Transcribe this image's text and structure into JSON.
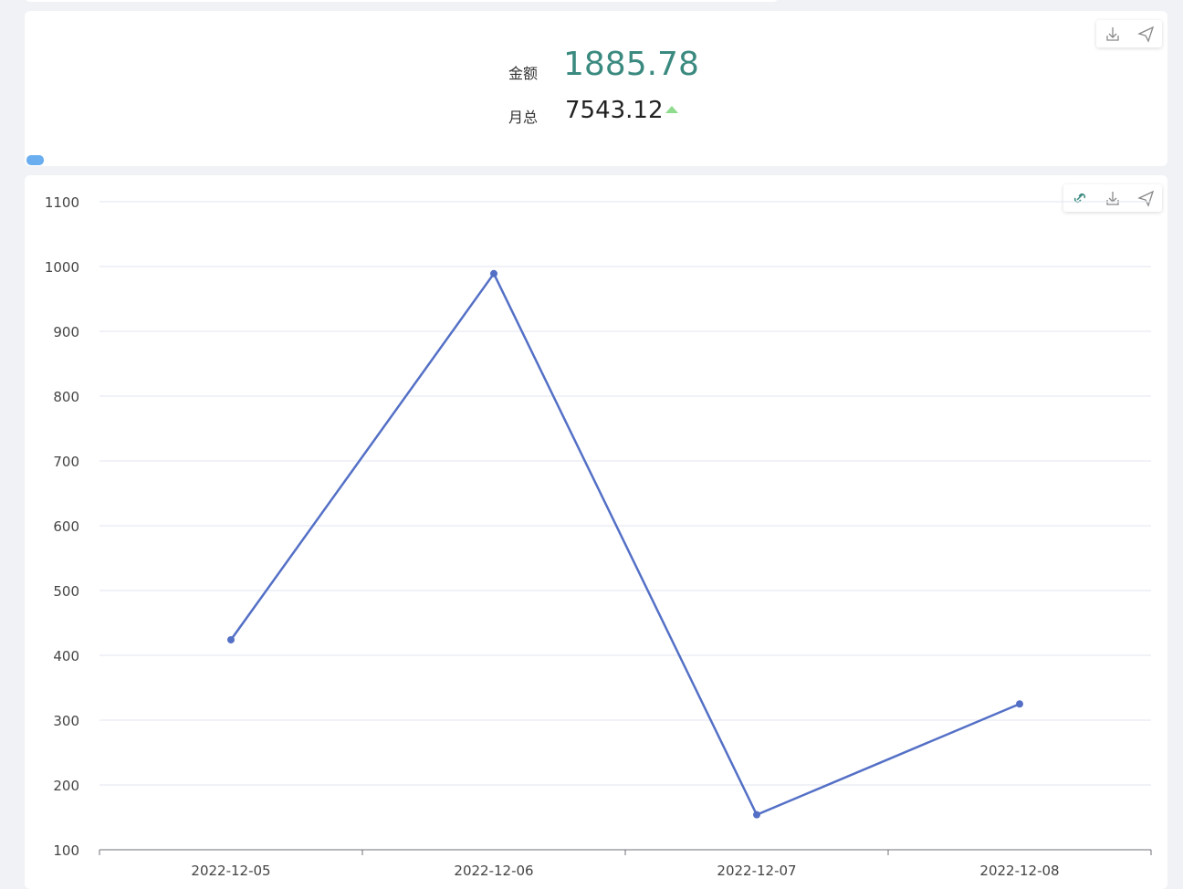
{
  "kpi": {
    "label": "金额",
    "value": "1885.78",
    "sub_label": "月总",
    "sub_value": "7543.12"
  },
  "chart_data": {
    "type": "line",
    "categories": [
      "2022-12-05",
      "2022-12-06",
      "2022-12-07",
      "2022-12-08"
    ],
    "series": [
      {
        "color": "#5470c6",
        "values": [
          424,
          989,
          154,
          325
        ]
      }
    ],
    "ylim": [
      100,
      1100
    ],
    "yticks": [
      100,
      200,
      300,
      400,
      500,
      600,
      700,
      800,
      900,
      1000,
      1100
    ],
    "grid": true
  }
}
